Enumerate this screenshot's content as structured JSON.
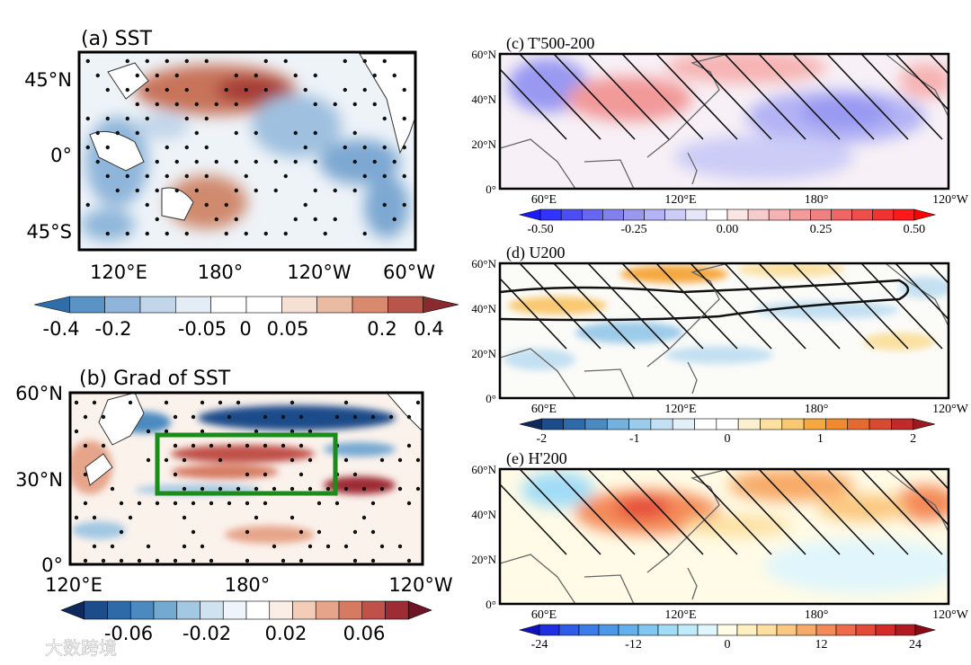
{
  "panel_a": {
    "title": "(a) SST",
    "y_ticks": [
      "45°N",
      "0°",
      "45°S"
    ],
    "x_ticks": [
      "120°E",
      "180°",
      "120°W",
      "60°W"
    ],
    "colorbar": {
      "labels": [
        "-0.4",
        "-0.2",
        "-0.05",
        "0",
        "0.05",
        "0.2",
        "0.4"
      ],
      "colors": [
        "#2f6ea8",
        "#5b93c4",
        "#8fb6da",
        "#c2d6ea",
        "#e4edf5",
        "#ffffff",
        "#ffffff",
        "#f6e0d4",
        "#ebbaa2",
        "#d88a6e",
        "#b9554a",
        "#8a2a2e"
      ]
    }
  },
  "panel_b": {
    "title": "(b) Grad of SST",
    "y_ticks": [
      "60°N",
      "30°N",
      "0°"
    ],
    "x_ticks": [
      "120°E",
      "180°",
      "120°W"
    ],
    "box_color": "#1a8c1a",
    "colorbar": {
      "labels": [
        "-0.06",
        "-0.02",
        "0.02",
        "0.06"
      ],
      "colors": [
        "#0d2a5a",
        "#1d4c8a",
        "#2f6aa8",
        "#4b8ac0",
        "#74a9d2",
        "#a3c8e3",
        "#cfe2f0",
        "#eef4f9",
        "#ffffff",
        "#fbeee6",
        "#f3cdb8",
        "#e6a58a",
        "#d67a62",
        "#c0514a",
        "#9e2c34",
        "#6e1426"
      ]
    }
  },
  "panel_c": {
    "title": "(c) T'500-200",
    "y_ticks": [
      "60°N",
      "40°N",
      "20°N",
      "0°"
    ],
    "x_ticks": [
      "60°E",
      "120°E",
      "180°",
      "120°W"
    ],
    "colorbar": {
      "labels": [
        "-0.50",
        "-0.25",
        "0.00",
        "0.25",
        "0.50"
      ],
      "colors": [
        "#1a1aff",
        "#3333ff",
        "#4d4df5",
        "#6666f0",
        "#8080f0",
        "#9999f2",
        "#b3b3f5",
        "#ccccf7",
        "#e6e6fa",
        "#ffffff",
        "#fbe6e6",
        "#f9cccc",
        "#f7b3b3",
        "#f59999",
        "#f28080",
        "#f06666",
        "#f04d4d",
        "#f03333",
        "#ff1a1a",
        "#ff0000"
      ]
    }
  },
  "panel_d": {
    "title": "(d) U200",
    "y_ticks": [
      "60°N",
      "40°N",
      "20°N",
      "0°"
    ],
    "x_ticks": [
      "60°E",
      "120°E",
      "180°",
      "120°W"
    ],
    "colorbar": {
      "labels": [
        "-2",
        "-1",
        "0",
        "1",
        "2"
      ],
      "colors": [
        "#0d2a5a",
        "#1d4c8a",
        "#2f6aa8",
        "#4b8ac0",
        "#74b0dc",
        "#9ccbe9",
        "#c3e0f2",
        "#e3f0f8",
        "#ffffff",
        "#ffffff",
        "#fdf0d0",
        "#fbe0a0",
        "#f9c870",
        "#f6a840",
        "#ef8a30",
        "#e66a30",
        "#d84a30",
        "#c02a2a",
        "#9a1a22"
      ]
    }
  },
  "panel_e": {
    "title": "(e) H'200",
    "y_ticks": [
      "60°N",
      "40°N",
      "20°N",
      "0°"
    ],
    "x_ticks": [
      "60°E",
      "120°E",
      "180°",
      "120°W"
    ],
    "colorbar": {
      "labels": [
        "-24",
        "-12",
        "0",
        "12",
        "24"
      ],
      "colors": [
        "#1010c0",
        "#2030e0",
        "#2c5ce8",
        "#3a7ce8",
        "#4c98e8",
        "#62b0ee",
        "#80c8f2",
        "#a0dcf6",
        "#c0ecfa",
        "#e0f6fc",
        "#fffbe6",
        "#fff0c0",
        "#fde0a0",
        "#fbc880",
        "#f8aa68",
        "#f48a58",
        "#ee6a48",
        "#e44a3a",
        "#d42a2a",
        "#b01a20",
        "#8a0a14"
      ]
    }
  },
  "watermark": "大数跨境"
}
